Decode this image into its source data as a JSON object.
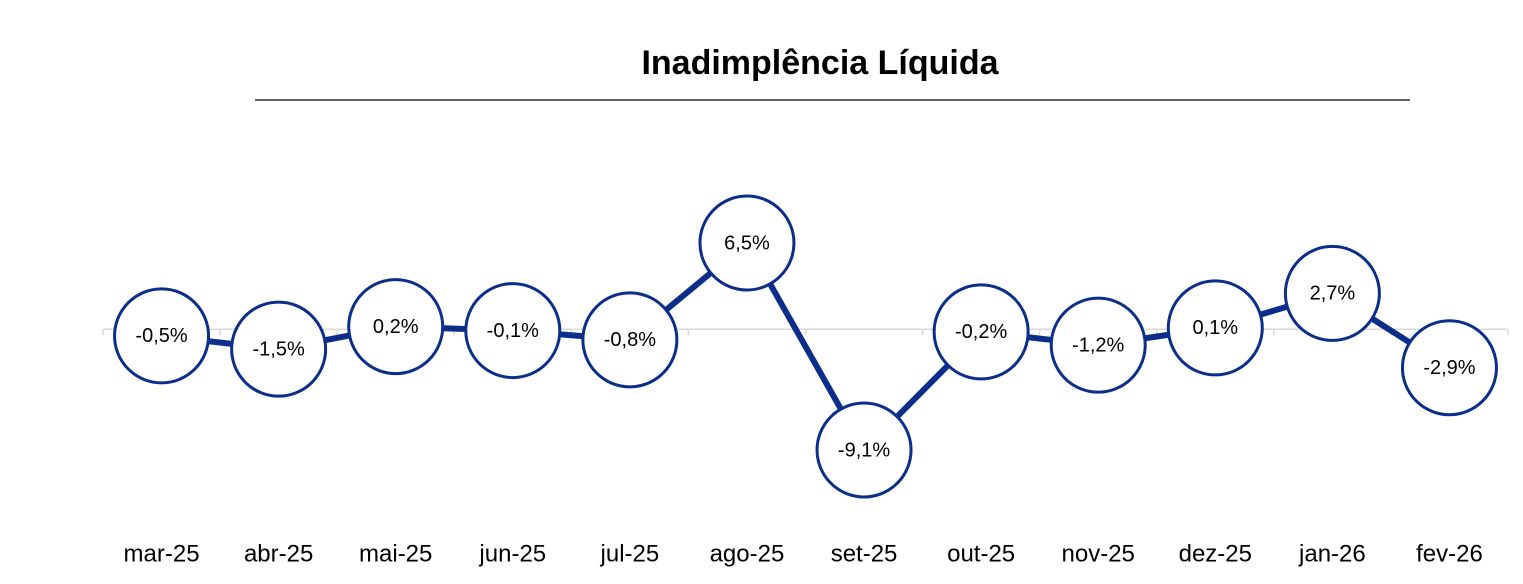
{
  "chart_data": {
    "type": "line",
    "title": "Inadimplência Líquida",
    "categories": [
      "mar-25",
      "abr-25",
      "mai-25",
      "jun-25",
      "jul-25",
      "ago-25",
      "set-25",
      "out-25",
      "nov-25",
      "dez-25",
      "jan-26",
      "fev-26"
    ],
    "values": [
      -0.5,
      -1.5,
      0.2,
      -0.1,
      -0.8,
      6.5,
      -9.1,
      -0.2,
      -1.2,
      0.1,
      2.7,
      -2.9
    ],
    "value_labels": [
      "-0,5%",
      "-1,5%",
      "0,2%",
      "-0,1%",
      "-0,8%",
      "6,5%",
      "-9,1%",
      "-0,2%",
      "-1,2%",
      "0,1%",
      "2,7%",
      "-2,9%"
    ],
    "color": "#0b2e8a"
  }
}
